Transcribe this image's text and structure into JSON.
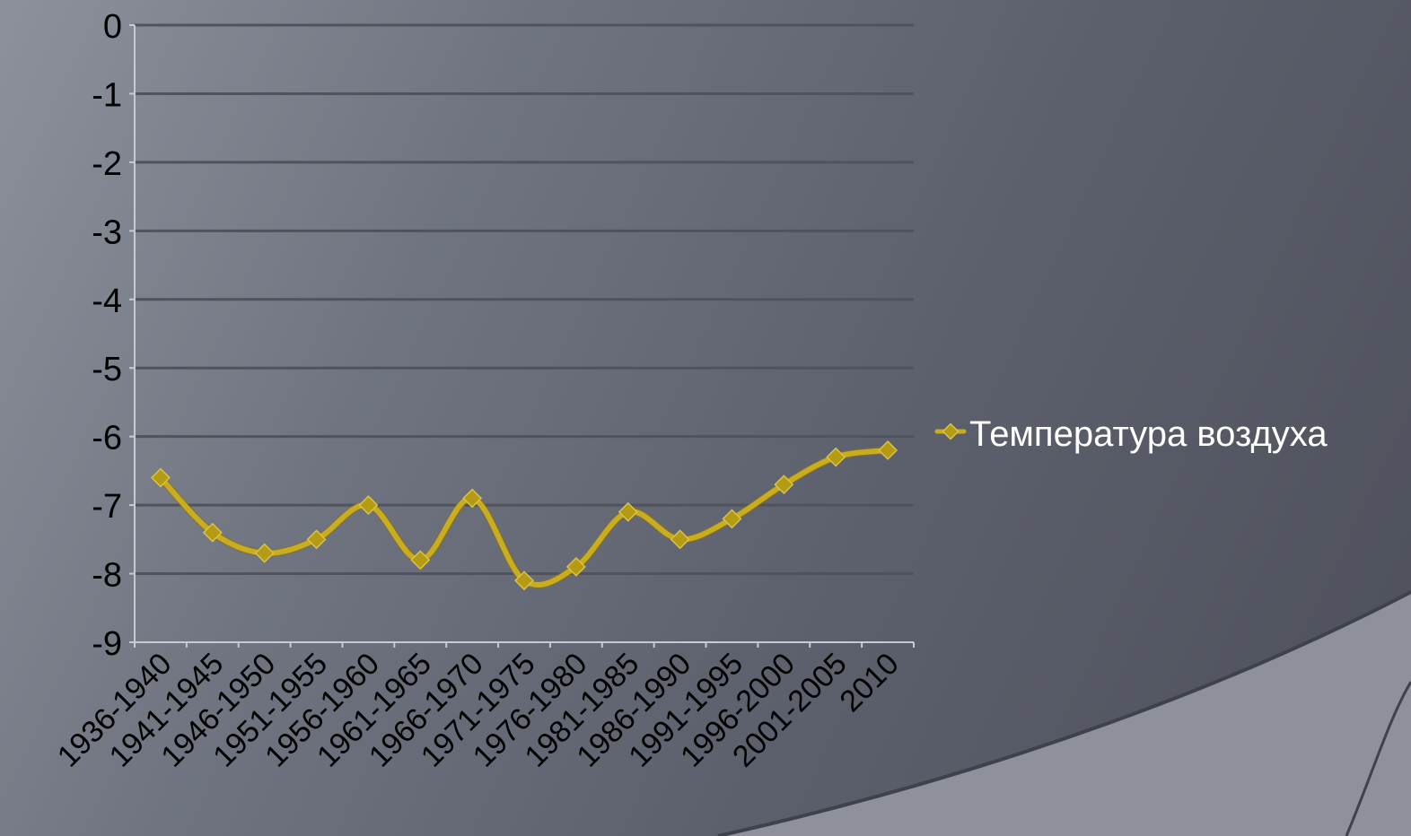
{
  "chart_data": {
    "type": "line",
    "title": "",
    "xlabel": "",
    "ylabel": "",
    "categories": [
      "1936-1940",
      "1941-1945",
      "1946-1950",
      "1951-1955",
      "1956-1960",
      "1961-1965",
      "1966-1970",
      "1971-1975",
      "1976-1980",
      "1981-1985",
      "1986-1990",
      "1991-1995",
      "1996-2000",
      "2001-2005",
      "2010"
    ],
    "series": [
      {
        "name": "Температура воздуха",
        "values": [
          -6.6,
          -7.4,
          -7.7,
          -7.5,
          -7.0,
          -7.8,
          -6.9,
          -8.1,
          -7.9,
          -7.1,
          -7.5,
          -7.2,
          -6.7,
          -6.3,
          -6.2
        ]
      }
    ],
    "ylim": [
      -9,
      0
    ],
    "yticks": [
      0,
      -1,
      -2,
      -3,
      -4,
      -5,
      -6,
      -7,
      -8,
      -9
    ],
    "grid": true,
    "smooth": true,
    "legend_position": "right",
    "colors": {
      "line": "#c9ad1e",
      "marker": "#b59a14",
      "grid": "#50535c",
      "axis": "#c8cad0",
      "tick_text": "#000000",
      "legend_text": "#ffffff"
    }
  }
}
